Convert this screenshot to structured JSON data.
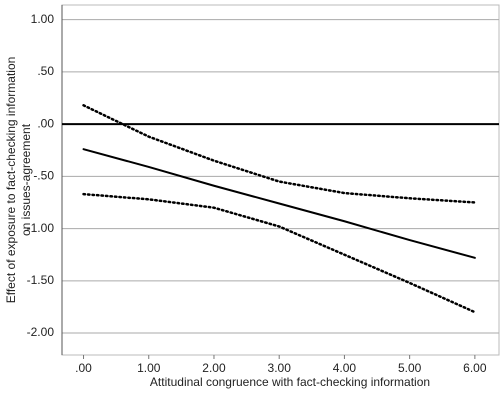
{
  "chart_data": {
    "type": "line",
    "x_label": "Attitudinal congruence with fact-checking information",
    "y_label": [
      "Effect of exposure to fact-checking information",
      "on issues-agreement"
    ],
    "x": [
      0,
      1,
      2,
      3,
      4,
      5,
      6
    ],
    "series": [
      {
        "color": "#000000",
        "style": "solid",
        "values": [
          -0.24,
          -0.41,
          -0.59,
          -0.76,
          -0.93,
          -1.11,
          -1.28
        ]
      },
      {
        "color": "#000000",
        "style": "dotted",
        "values": [
          0.18,
          -0.12,
          -0.35,
          -0.55,
          -0.66,
          -0.71,
          -0.75
        ]
      },
      {
        "color": "#000000",
        "style": "dotted",
        "values": [
          -0.67,
          -0.72,
          -0.8,
          -0.98,
          -1.25,
          -1.52,
          -1.8
        ]
      }
    ],
    "reference_line": 0,
    "xlim": [
      -0.33,
      6.37
    ],
    "ylim": [
      -2.21,
      1.14
    ],
    "xticks": [
      {
        "value": 0,
        "label": ".00"
      },
      {
        "value": 1,
        "label": "1.00"
      },
      {
        "value": 2,
        "label": "2.00"
      },
      {
        "value": 3,
        "label": "3.00"
      },
      {
        "value": 4,
        "label": "4.00"
      },
      {
        "value": 5,
        "label": "5.00"
      },
      {
        "value": 6,
        "label": "6.00"
      }
    ],
    "yticks": [
      {
        "value": 1,
        "label": "1.00"
      },
      {
        "value": 0.5,
        "label": ".50"
      },
      {
        "value": 0,
        "label": ".00"
      },
      {
        "value": -0.5,
        "label": "-.50"
      },
      {
        "value": -1,
        "label": "-1.00"
      },
      {
        "value": -1.5,
        "label": "-1.50"
      },
      {
        "value": -2,
        "label": "-2.00"
      }
    ],
    "grid": true
  }
}
